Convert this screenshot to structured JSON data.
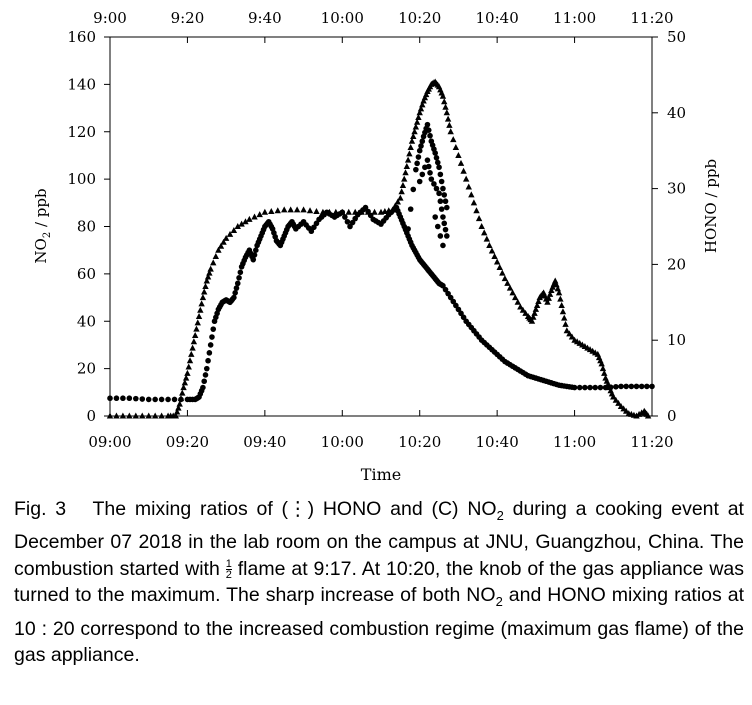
{
  "chart_data": {
    "type": "scatter",
    "xlabel": "Time",
    "ylabel_left": "NO2 / ppb",
    "ylabel_right": "HONO / ppb",
    "xlim": [
      "09:00",
      "11:20"
    ],
    "ylim_left": [
      0,
      160
    ],
    "ylim_right": [
      0,
      50
    ],
    "x_ticks": [
      "09:00",
      "09:20",
      "09:40",
      "10:00",
      "10:20",
      "10:40",
      "11:00",
      "11:20"
    ],
    "x_ticks_top": [
      "9:00",
      "9:20",
      "9:40",
      "10:00",
      "10:20",
      "10:40",
      "11:00",
      "11:20"
    ],
    "y_ticks_left": [
      0,
      20,
      40,
      60,
      80,
      100,
      120,
      140,
      160
    ],
    "y_ticks_right": [
      0,
      10,
      20,
      30,
      40,
      50
    ],
    "series": [
      {
        "marker": "triangle",
        "axis": "left",
        "points": [
          [
            "09:00",
            0
          ],
          [
            "09:05",
            0
          ],
          [
            "09:10",
            0
          ],
          [
            "09:15",
            0
          ],
          [
            "09:17",
            0
          ],
          [
            "09:18",
            5
          ],
          [
            "09:19",
            12
          ],
          [
            "09:20",
            18
          ],
          [
            "09:21",
            26
          ],
          [
            "09:22",
            34
          ],
          [
            "09:23",
            42
          ],
          [
            "09:24",
            50
          ],
          [
            "09:25",
            57
          ],
          [
            "09:26",
            62
          ],
          [
            "09:28",
            70
          ],
          [
            "09:30",
            75
          ],
          [
            "09:33",
            80
          ],
          [
            "09:36",
            83
          ],
          [
            "09:40",
            86
          ],
          [
            "09:45",
            87
          ],
          [
            "09:50",
            87
          ],
          [
            "09:55",
            86
          ],
          [
            "10:00",
            86
          ],
          [
            "10:05",
            86
          ],
          [
            "10:10",
            86
          ],
          [
            "10:13",
            87
          ],
          [
            "10:15",
            92
          ],
          [
            "10:16",
            100
          ],
          [
            "10:17",
            108
          ],
          [
            "10:18",
            116
          ],
          [
            "10:19",
            122
          ],
          [
            "10:20",
            128
          ],
          [
            "10:21",
            133
          ],
          [
            "10:22",
            137
          ],
          [
            "10:23",
            140
          ],
          [
            "10:24",
            141
          ],
          [
            "10:25",
            139
          ],
          [
            "10:26",
            135
          ],
          [
            "10:27",
            128
          ],
          [
            "10:28",
            120
          ],
          [
            "10:30",
            110
          ],
          [
            "10:32",
            100
          ],
          [
            "10:34",
            90
          ],
          [
            "10:36",
            80
          ],
          [
            "10:38",
            72
          ],
          [
            "10:40",
            65
          ],
          [
            "10:42",
            58
          ],
          [
            "10:44",
            52
          ],
          [
            "10:46",
            46
          ],
          [
            "10:48",
            42
          ],
          [
            "10:49",
            40
          ],
          [
            "10:50",
            45
          ],
          [
            "10:51",
            50
          ],
          [
            "10:52",
            52
          ],
          [
            "10:53",
            48
          ],
          [
            "10:54",
            53
          ],
          [
            "10:55",
            57
          ],
          [
            "10:56",
            52
          ],
          [
            "10:57",
            44
          ],
          [
            "10:58",
            36
          ],
          [
            "11:00",
            32
          ],
          [
            "11:02",
            30
          ],
          [
            "11:04",
            28
          ],
          [
            "11:06",
            26
          ],
          [
            "11:07",
            22
          ],
          [
            "11:08",
            16
          ],
          [
            "11:09",
            12
          ],
          [
            "11:10",
            8
          ],
          [
            "11:12",
            4
          ],
          [
            "11:14",
            1
          ],
          [
            "11:16",
            0
          ],
          [
            "11:18",
            2
          ],
          [
            "11:19",
            0
          ]
        ]
      },
      {
        "marker": "circle",
        "axis": "left",
        "points": [
          [
            "09:00",
            7.5
          ],
          [
            "09:05",
            7.5
          ],
          [
            "09:10",
            7
          ],
          [
            "09:15",
            7
          ],
          [
            "09:20",
            7
          ],
          [
            "09:22",
            7
          ],
          [
            "09:23",
            8
          ],
          [
            "09:24",
            12
          ],
          [
            "09:25",
            20
          ],
          [
            "09:26",
            30
          ],
          [
            "09:27",
            40
          ],
          [
            "09:28",
            45
          ],
          [
            "09:29",
            48
          ],
          [
            "09:30",
            49
          ],
          [
            "09:31",
            48
          ],
          [
            "09:32",
            50
          ],
          [
            "09:33",
            56
          ],
          [
            "09:34",
            63
          ],
          [
            "09:35",
            67
          ],
          [
            "09:36",
            70
          ],
          [
            "09:37",
            66
          ],
          [
            "09:38",
            72
          ],
          [
            "09:39",
            76
          ],
          [
            "09:40",
            80
          ],
          [
            "09:41",
            82
          ],
          [
            "09:42",
            79
          ],
          [
            "09:43",
            74
          ],
          [
            "09:44",
            72
          ],
          [
            "09:45",
            76
          ],
          [
            "09:46",
            80
          ],
          [
            "09:47",
            82
          ],
          [
            "09:48",
            79
          ],
          [
            "09:50",
            82
          ],
          [
            "09:52",
            78
          ],
          [
            "09:54",
            83
          ],
          [
            "09:56",
            86
          ],
          [
            "09:58",
            84
          ],
          [
            "10:00",
            86
          ],
          [
            "10:02",
            80
          ],
          [
            "10:04",
            85
          ],
          [
            "10:06",
            88
          ],
          [
            "10:08",
            83
          ],
          [
            "10:10",
            81
          ],
          [
            "10:12",
            85
          ],
          [
            "10:14",
            88
          ],
          [
            "10:15",
            84
          ],
          [
            "10:16",
            80
          ],
          [
            "10:17",
            76
          ],
          [
            "10:18",
            72
          ],
          [
            "10:19",
            69
          ],
          [
            "10:20",
            66
          ],
          [
            "10:21",
            64
          ],
          [
            "10:22",
            62
          ],
          [
            "10:23",
            60
          ],
          [
            "10:24",
            58
          ],
          [
            "10:25",
            56
          ],
          [
            "10:26",
            55
          ],
          [
            "10:28",
            50
          ],
          [
            "10:30",
            45
          ],
          [
            "10:32",
            40
          ],
          [
            "10:34",
            36
          ],
          [
            "10:36",
            32
          ],
          [
            "10:38",
            29
          ],
          [
            "10:40",
            26
          ],
          [
            "10:42",
            23
          ],
          [
            "10:44",
            21
          ],
          [
            "10:46",
            19
          ],
          [
            "10:48",
            17
          ],
          [
            "10:50",
            16
          ],
          [
            "10:52",
            15
          ],
          [
            "10:54",
            14
          ],
          [
            "10:56",
            13
          ],
          [
            "10:58",
            12.5
          ],
          [
            "11:00",
            12
          ],
          [
            "11:04",
            12
          ],
          [
            "11:08",
            12
          ],
          [
            "11:12",
            12.5
          ],
          [
            "11:16",
            12.5
          ],
          [
            "11:20",
            12.5
          ]
        ]
      },
      {
        "marker": "circle",
        "axis": "left",
        "points": [
          [
            "10:17",
            79
          ],
          [
            "10:19",
            104
          ],
          [
            "10:20",
            112
          ],
          [
            "10:21",
            118
          ],
          [
            "10:22",
            123
          ],
          [
            "10:23",
            116
          ],
          [
            "10:24",
            111
          ],
          [
            "10:25",
            105
          ],
          [
            "10:26",
            96
          ],
          [
            "10:27",
            88
          ],
          [
            "10:20",
            99
          ],
          [
            "10:22",
            108
          ],
          [
            "10:23",
            100
          ],
          [
            "10:25",
            94
          ],
          [
            "10:26",
            84
          ],
          [
            "10:27",
            76
          ],
          [
            "10:24",
            84
          ],
          [
            "10:26",
            72
          ]
        ]
      }
    ]
  },
  "caption": {
    "fig": "Fig. 3",
    "part1": "The mixing ratios of (",
    "sym1": "⋮",
    "part2": ") HONO and (",
    "sym2": "C",
    "part3": ") NO",
    "sub": "2",
    "part4": " during a cooking event at December 07 2018 in the lab room on the campus at JNU, Guangzhou, China. The combustion started with ",
    "frac_num": "1",
    "frac_den": "2",
    "part5": " flame at 9:17. At 10:20, the knob of the gas appliance was turned to the maximum. The sharp increase of both NO",
    "part6": " and HONO mixing ratios at 10 : 20 correspond to the increased combustion regime (maximum gas flame) of the gas appliance."
  }
}
